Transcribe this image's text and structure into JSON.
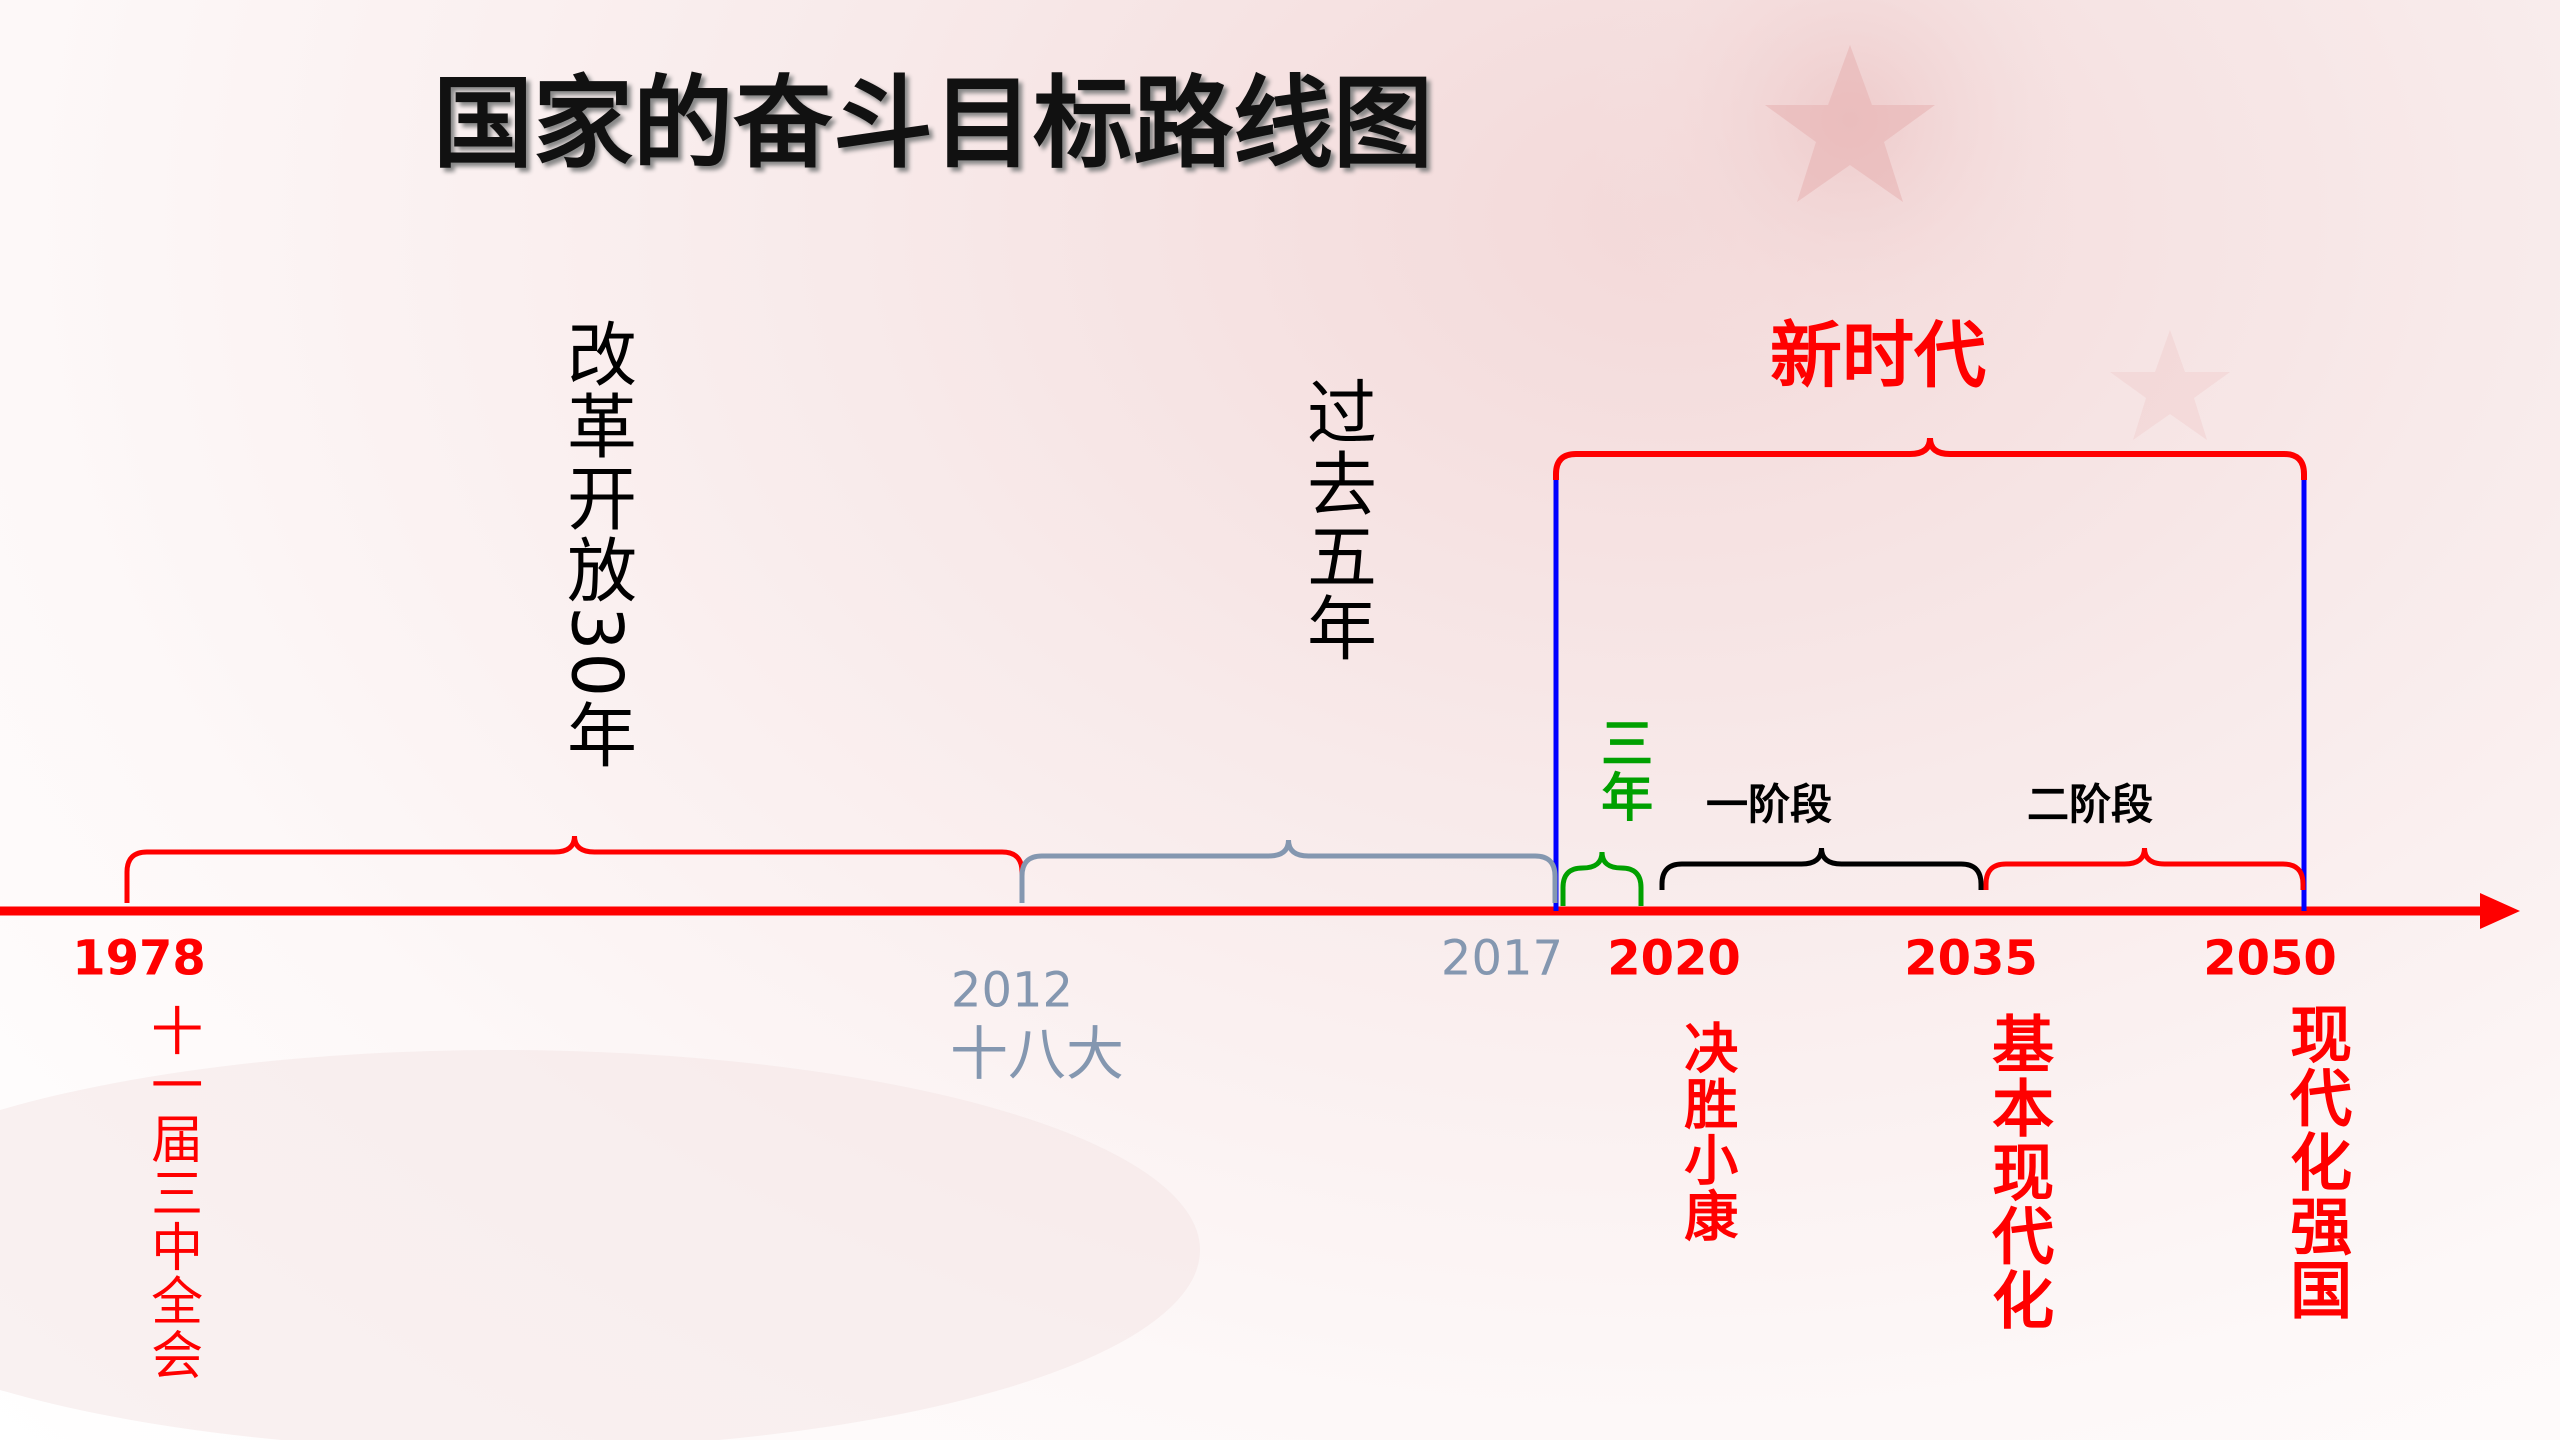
{
  "title": "国家的奋斗目标路线图",
  "periods": [
    {
      "label": "改革开放30年"
    },
    {
      "label": "过去五年"
    },
    {
      "label": "新时代"
    },
    {
      "label": "三年"
    },
    {
      "label": "一阶段"
    },
    {
      "label": "二阶段"
    }
  ],
  "milestones": [
    {
      "year": "1978",
      "label": "十一届三中全会"
    },
    {
      "year": "2012",
      "label": "十八大"
    },
    {
      "year": "2017"
    },
    {
      "year": "2020",
      "label": "决胜小康"
    },
    {
      "year": "2035",
      "label": "基本现代化"
    },
    {
      "year": "2050",
      "label": "现代化强国"
    }
  ]
}
